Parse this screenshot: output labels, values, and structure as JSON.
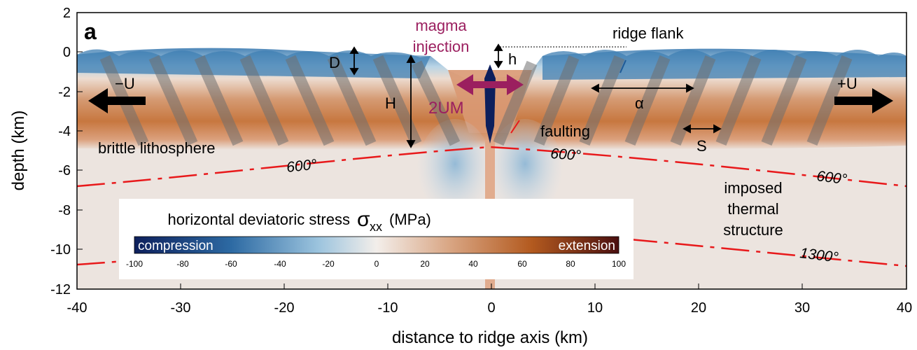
{
  "panel_label": "a",
  "axes": {
    "xlabel": "distance to ridge axis (km)",
    "ylabel": "depth (km)",
    "xlim": [
      -40,
      40
    ],
    "ylim": [
      -12,
      2
    ],
    "xticks": [
      "-40",
      "-30",
      "-20",
      "-10",
      "0",
      "10",
      "20",
      "30",
      "40"
    ],
    "yticks": [
      "2",
      "0",
      "-2",
      "-4",
      "-6",
      "-8",
      "-10",
      "-12"
    ]
  },
  "annotations": {
    "magma_line1": "magma",
    "magma_line2": "injection",
    "ridge_flank": "ridge flank",
    "D": "D",
    "h": "h",
    "H": "H",
    "minus_u": "−U",
    "plus_u": "+U",
    "two_um": "2UM",
    "alpha": "α",
    "faulting": "faulting",
    "S": "S",
    "brittle": "brittle lithosphere",
    "imposed_1": "imposed",
    "imposed_2": "thermal",
    "imposed_3": "structure"
  },
  "isotherms": {
    "left_600": "600°",
    "mid_600": "600°",
    "right_600": "600°",
    "right_1300": "1300°"
  },
  "colorbar": {
    "title": "horizontal deviatoric stress",
    "symbol": "σ",
    "subscript": "xx",
    "units": "(MPa)",
    "left_label": "compression",
    "right_label": "extension",
    "ticks": [
      "-100",
      "-80",
      "-60",
      "-40",
      "-20",
      "0",
      "20",
      "40",
      "60",
      "80",
      "100"
    ]
  },
  "colors": {
    "compression": "#1f5a96",
    "extension": "#b35a1f",
    "neutral": "#ece4df",
    "isotherm": "#e8191b",
    "magma_text": "#9b1f5f",
    "fault_band": "#6f6f6f",
    "dyke": "#0d1f5c"
  }
}
